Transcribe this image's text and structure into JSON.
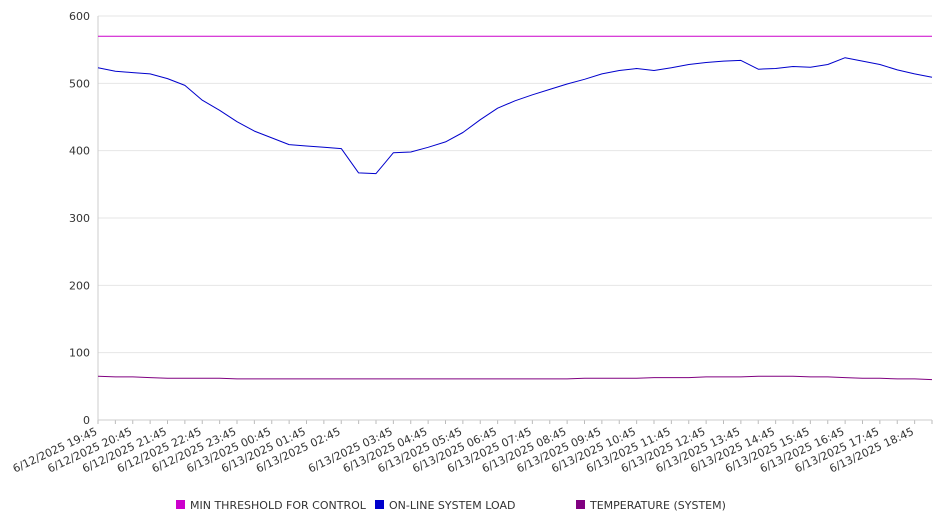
{
  "chart_data": {
    "type": "line",
    "title": "",
    "xlabel": "",
    "ylabel": "",
    "ylim": [
      0,
      600
    ],
    "yticks": [
      0,
      100,
      200,
      300,
      400,
      500,
      600
    ],
    "grid": "horizontal",
    "legend_position": "bottom",
    "x_tick_labels": [
      "6/12/2025 19:45",
      "6/12/2025 20:45",
      "6/12/2025 21:45",
      "6/12/2025 22:45",
      "6/12/2025 23:45",
      "6/13/2025 00:45",
      "6/13/2025 01:45",
      "6/13/2025 02:45",
      "6/13/2025 03:45",
      "6/13/2025 04:45",
      "6/13/2025 05:45",
      "6/13/2025 06:45",
      "6/13/2025 07:45",
      "6/13/2025 08:45",
      "6/13/2025 09:45",
      "6/13/2025 10:45",
      "6/13/2025 11:45",
      "6/13/2025 12:45",
      "6/13/2025 13:45",
      "6/13/2025 14:45",
      "6/13/2025 15:45",
      "6/13/2025 16:45",
      "6/13/2025 17:45",
      "6/13/2025 18:45"
    ],
    "x": [
      "6/12/2025 19:45",
      "6/12/2025 20:15",
      "6/12/2025 20:45",
      "6/12/2025 21:15",
      "6/12/2025 21:45",
      "6/12/2025 22:15",
      "6/12/2025 22:45",
      "6/12/2025 23:15",
      "6/12/2025 23:45",
      "6/13/2025 00:15",
      "6/13/2025 00:45",
      "6/13/2025 01:15",
      "6/13/2025 01:45",
      "6/13/2025 02:15",
      "6/13/2025 02:45",
      "6/13/2025 03:00",
      "6/13/2025 03:15",
      "6/13/2025 03:45",
      "6/13/2025 04:15",
      "6/13/2025 04:45",
      "6/13/2025 05:15",
      "6/13/2025 05:45",
      "6/13/2025 06:15",
      "6/13/2025 06:45",
      "6/13/2025 07:15",
      "6/13/2025 07:45",
      "6/13/2025 08:15",
      "6/13/2025 08:45",
      "6/13/2025 09:15",
      "6/13/2025 09:45",
      "6/13/2025 10:15",
      "6/13/2025 10:45",
      "6/13/2025 11:15",
      "6/13/2025 11:45",
      "6/13/2025 12:15",
      "6/13/2025 12:45",
      "6/13/2025 13:15",
      "6/13/2025 13:45",
      "6/13/2025 14:15",
      "6/13/2025 14:45",
      "6/13/2025 15:15",
      "6/13/2025 15:45",
      "6/13/2025 16:15",
      "6/13/2025 16:45",
      "6/13/2025 17:15",
      "6/13/2025 17:45",
      "6/13/2025 18:15",
      "6/13/2025 18:45",
      "6/13/2025 19:15"
    ],
    "series": [
      {
        "name": "MIN THRESHOLD FOR CONTROL",
        "color": "#cc00cc",
        "values": [
          570,
          570,
          570,
          570,
          570,
          570,
          570,
          570,
          570,
          570,
          570,
          570,
          570,
          570,
          570,
          570,
          570,
          570,
          570,
          570,
          570,
          570,
          570,
          570,
          570,
          570,
          570,
          570,
          570,
          570,
          570,
          570,
          570,
          570,
          570,
          570,
          570,
          570,
          570,
          570,
          570,
          570,
          570,
          570,
          570,
          570,
          570,
          570,
          570
        ]
      },
      {
        "name": "ON-LINE SYSTEM LOAD",
        "color": "#0000cc",
        "values": [
          523,
          518,
          516,
          514,
          507,
          497,
          475,
          460,
          443,
          429,
          419,
          409,
          407,
          405,
          403,
          367,
          366,
          397,
          398,
          405,
          413,
          427,
          446,
          463,
          474,
          483,
          491,
          499,
          506,
          514,
          519,
          522,
          519,
          523,
          528,
          531,
          533,
          534,
          521,
          522,
          525,
          524,
          528,
          538,
          533,
          528,
          520,
          514,
          509
        ]
      },
      {
        "name": "TEMPERATURE (SYSTEM)",
        "color": "#800080",
        "values": [
          65,
          64,
          64,
          63,
          62,
          62,
          62,
          62,
          61,
          61,
          61,
          61,
          61,
          61,
          61,
          61,
          61,
          61,
          61,
          61,
          61,
          61,
          61,
          61,
          61,
          61,
          61,
          61,
          62,
          62,
          62,
          62,
          63,
          63,
          63,
          64,
          64,
          64,
          65,
          65,
          65,
          64,
          64,
          63,
          62,
          62,
          61,
          61,
          60
        ]
      }
    ]
  }
}
